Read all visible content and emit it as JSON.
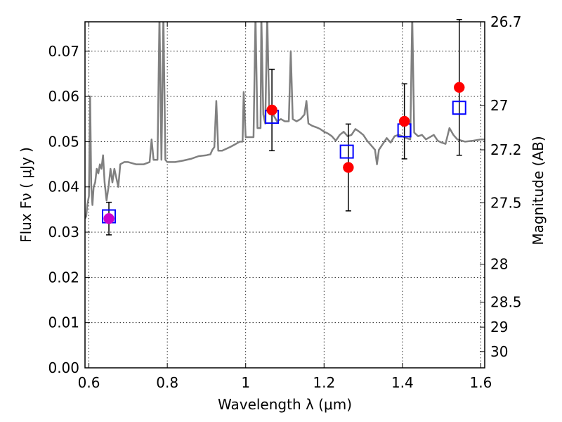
{
  "chart_data": {
    "type": "scatter",
    "xlabel": "Wavelength  λ (μm)",
    "ylabel_left": "Flux  Fν  ( μJy )",
    "ylabel_right": "Magnitude (AB)",
    "xlim": [
      0.59,
      1.61
    ],
    "ylim": [
      0.0,
      0.0765
    ],
    "grid": true,
    "x_ticks": [
      {
        "value": 0.6,
        "label": "0.6"
      },
      {
        "value": 0.8,
        "label": "0.8"
      },
      {
        "value": 1.0,
        "label": "1"
      },
      {
        "value": 1.2,
        "label": "1.2"
      },
      {
        "value": 1.4,
        "label": "1.4"
      },
      {
        "value": 1.6,
        "label": "1.6"
      }
    ],
    "y_ticks": [
      {
        "value": 0.0,
        "label": "0.00"
      },
      {
        "value": 0.01,
        "label": "0.01"
      },
      {
        "value": 0.02,
        "label": "0.02"
      },
      {
        "value": 0.03,
        "label": "0.03"
      },
      {
        "value": 0.04,
        "label": "0.04"
      },
      {
        "value": 0.05,
        "label": "0.05"
      },
      {
        "value": 0.06,
        "label": "0.06"
      },
      {
        "value": 0.07,
        "label": "0.07"
      }
    ],
    "mag_ticks": [
      {
        "value": 0.0765,
        "label": "26.7"
      },
      {
        "value": 0.058,
        "label": "27"
      },
      {
        "value": 0.0482,
        "label": "27.2"
      },
      {
        "value": 0.0365,
        "label": "27.5"
      },
      {
        "value": 0.0229,
        "label": "28"
      },
      {
        "value": 0.0145,
        "label": "28.5"
      },
      {
        "value": 0.009,
        "label": "29"
      },
      {
        "value": 0.0036,
        "label": "30"
      }
    ],
    "series": [
      {
        "kind": "line",
        "color": "#808080",
        "points": [
          [
            0.59,
            0.033
          ],
          [
            0.593,
            0.0335
          ],
          [
            0.596,
            0.036
          ],
          [
            0.6,
            0.038
          ],
          [
            0.603,
            0.06
          ],
          [
            0.606,
            0.04
          ],
          [
            0.609,
            0.036
          ],
          [
            0.612,
            0.04
          ],
          [
            0.616,
            0.041
          ],
          [
            0.62,
            0.044
          ],
          [
            0.624,
            0.043
          ],
          [
            0.628,
            0.045
          ],
          [
            0.632,
            0.044
          ],
          [
            0.636,
            0.047
          ],
          [
            0.64,
            0.041
          ],
          [
            0.645,
            0.037
          ],
          [
            0.65,
            0.04
          ],
          [
            0.655,
            0.044
          ],
          [
            0.66,
            0.041
          ],
          [
            0.665,
            0.044
          ],
          [
            0.67,
            0.042
          ],
          [
            0.675,
            0.04
          ],
          [
            0.68,
            0.045
          ],
          [
            0.69,
            0.0455
          ],
          [
            0.7,
            0.0455
          ],
          [
            0.72,
            0.045
          ],
          [
            0.74,
            0.045
          ],
          [
            0.755,
            0.0455
          ],
          [
            0.76,
            0.0505
          ],
          [
            0.765,
            0.046
          ],
          [
            0.775,
            0.046
          ],
          [
            0.78,
            0.078
          ],
          [
            0.785,
            0.046
          ],
          [
            0.79,
            0.078
          ],
          [
            0.795,
            0.046
          ],
          [
            0.8,
            0.0455
          ],
          [
            0.82,
            0.0455
          ],
          [
            0.84,
            0.0458
          ],
          [
            0.86,
            0.0462
          ],
          [
            0.88,
            0.0468
          ],
          [
            0.9,
            0.047
          ],
          [
            0.91,
            0.0472
          ],
          [
            0.915,
            0.0482
          ],
          [
            0.92,
            0.0488
          ],
          [
            0.925,
            0.059
          ],
          [
            0.93,
            0.048
          ],
          [
            0.94,
            0.048
          ],
          [
            0.96,
            0.0488
          ],
          [
            0.975,
            0.0495
          ],
          [
            0.985,
            0.05
          ],
          [
            0.992,
            0.05
          ],
          [
            0.995,
            0.061
          ],
          [
            1.0,
            0.051
          ],
          [
            1.01,
            0.051
          ],
          [
            1.02,
            0.051
          ],
          [
            1.025,
            0.078
          ],
          [
            1.03,
            0.053
          ],
          [
            1.038,
            0.053
          ],
          [
            1.04,
            0.078
          ],
          [
            1.045,
            0.056
          ],
          [
            1.05,
            0.054
          ],
          [
            1.055,
            0.078
          ],
          [
            1.06,
            0.057
          ],
          [
            1.07,
            0.056
          ],
          [
            1.08,
            0.0545
          ],
          [
            1.09,
            0.055
          ],
          [
            1.1,
            0.0545
          ],
          [
            1.11,
            0.0545
          ],
          [
            1.115,
            0.07
          ],
          [
            1.12,
            0.055
          ],
          [
            1.13,
            0.0545
          ],
          [
            1.14,
            0.055
          ],
          [
            1.15,
            0.056
          ],
          [
            1.155,
            0.059
          ],
          [
            1.16,
            0.054
          ],
          [
            1.17,
            0.0535
          ],
          [
            1.18,
            0.0532
          ],
          [
            1.19,
            0.0528
          ],
          [
            1.2,
            0.0522
          ],
          [
            1.21,
            0.0518
          ],
          [
            1.22,
            0.0512
          ],
          [
            1.23,
            0.0502
          ],
          [
            1.24,
            0.0515
          ],
          [
            1.25,
            0.0522
          ],
          [
            1.26,
            0.0512
          ],
          [
            1.27,
            0.0515
          ],
          [
            1.28,
            0.0528
          ],
          [
            1.29,
            0.0522
          ],
          [
            1.3,
            0.0515
          ],
          [
            1.31,
            0.0502
          ],
          [
            1.32,
            0.0492
          ],
          [
            1.33,
            0.0482
          ],
          [
            1.335,
            0.045
          ],
          [
            1.34,
            0.0482
          ],
          [
            1.35,
            0.0495
          ],
          [
            1.36,
            0.0508
          ],
          [
            1.37,
            0.0498
          ],
          [
            1.38,
            0.0512
          ],
          [
            1.39,
            0.0515
          ],
          [
            1.4,
            0.0512
          ],
          [
            1.41,
            0.0508
          ],
          [
            1.42,
            0.0505
          ],
          [
            1.425,
            0.078
          ],
          [
            1.43,
            0.052
          ],
          [
            1.44,
            0.0512
          ],
          [
            1.45,
            0.0515
          ],
          [
            1.46,
            0.0505
          ],
          [
            1.48,
            0.0515
          ],
          [
            1.49,
            0.0502
          ],
          [
            1.5,
            0.0498
          ],
          [
            1.51,
            0.0495
          ],
          [
            1.52,
            0.053
          ],
          [
            1.53,
            0.0515
          ],
          [
            1.54,
            0.0505
          ],
          [
            1.56,
            0.05
          ],
          [
            1.58,
            0.0502
          ],
          [
            1.6,
            0.0505
          ],
          [
            1.61,
            0.0505
          ]
        ]
      },
      {
        "kind": "markers",
        "marker": "square",
        "color": "#0000ff",
        "points": [
          {
            "x": 0.651,
            "y": 0.0335
          },
          {
            "x": 1.067,
            "y": 0.0555
          },
          {
            "x": 1.258,
            "y": 0.0478
          },
          {
            "x": 1.405,
            "y": 0.0525
          },
          {
            "x": 1.545,
            "y": 0.0575
          }
        ]
      },
      {
        "kind": "markers",
        "marker": "circle",
        "color": "#ff0000",
        "points": [
          {
            "x": 0.651,
            "y": 0.033,
            "err": 0.0036
          },
          {
            "x": 1.067,
            "y": 0.057,
            "err": 0.009
          },
          {
            "x": 1.262,
            "y": 0.0443,
            "err": 0.0096
          },
          {
            "x": 1.405,
            "y": 0.0545,
            "err": 0.0083
          },
          {
            "x": 1.545,
            "y": 0.062,
            "err": 0.015
          }
        ],
        "first_point_color": "#cc00cc"
      }
    ]
  }
}
